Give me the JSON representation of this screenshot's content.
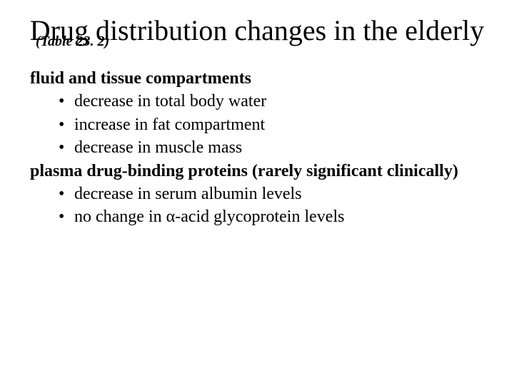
{
  "title": "Drug distribution changes in the elderly",
  "table_ref": "(Table 23. 2)",
  "sections": [
    {
      "heading": "fluid and tissue compartments",
      "items": [
        "decrease in total body water",
        "increase in fat compartment",
        "decrease in muscle mass"
      ]
    },
    {
      "heading": "plasma drug-binding proteins (rarely significant clinically)",
      "items": [
        "decrease in serum albumin levels",
        "no change in α-acid glycoprotein levels"
      ]
    }
  ],
  "style": {
    "background_color": "#ffffff",
    "text_color": "#000000",
    "title_fontsize": 40,
    "body_fontsize": 24,
    "tableref_fontsize": 20,
    "font_family": "Times New Roman"
  }
}
